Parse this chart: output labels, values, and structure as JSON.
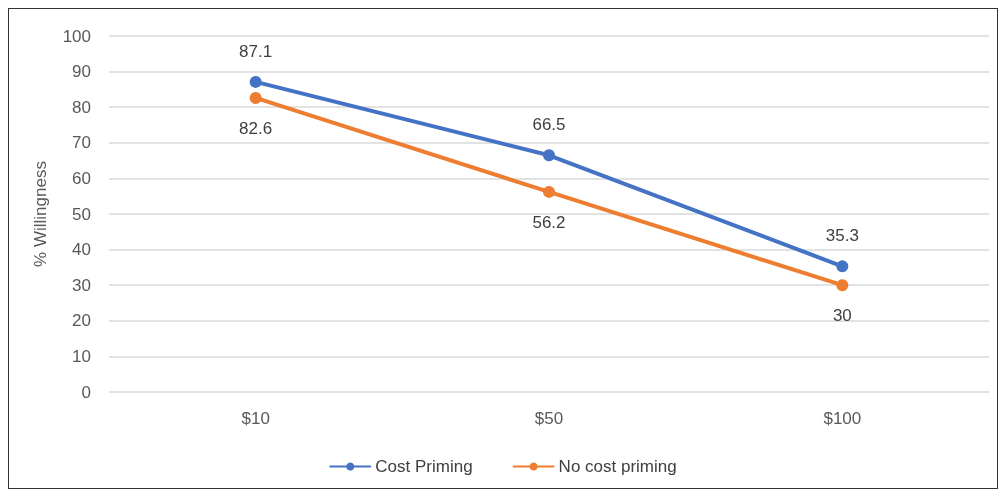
{
  "chart_data": {
    "type": "line",
    "ylabel": "% Willingness",
    "categories": [
      "$10",
      "$50",
      "$100"
    ],
    "series": [
      {
        "name": "Cost Priming",
        "color": "#4472c4",
        "values": [
          87.1,
          66.5,
          35.3
        ]
      },
      {
        "name": "No cost priming",
        "color": "#ed7d31",
        "values": [
          82.6,
          56.2,
          30
        ]
      }
    ],
    "ylim": [
      0,
      100
    ],
    "yticks": [
      0,
      10,
      20,
      30,
      40,
      50,
      60,
      70,
      80,
      90,
      100
    ],
    "grid": "y",
    "legend": "bottom",
    "marker": "circle",
    "line_style": "solid",
    "data_labels": true
  }
}
